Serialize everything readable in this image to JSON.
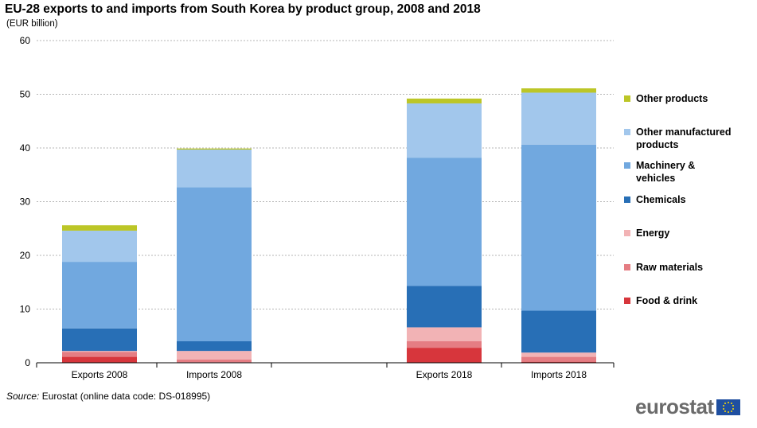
{
  "chart_data": {
    "type": "bar",
    "stacked": true,
    "title": "EU-28 exports to and imports from South Korea by product group, 2008 and 2018",
    "unit": "(EUR billion)",
    "categories": [
      "Exports 2008",
      "Imports 2008",
      "Exports 2018",
      "Imports 2018"
    ],
    "ylim": [
      0,
      60
    ],
    "yticks": [
      "0",
      "10",
      "20",
      "30",
      "40",
      "50",
      "60"
    ],
    "grid": true,
    "legend_position": "right",
    "series": [
      {
        "name": "Food & drink",
        "color": "#d7363c",
        "values": [
          1.1,
          0.1,
          2.8,
          0.2
        ]
      },
      {
        "name": "Raw materials",
        "color": "#e57d83",
        "values": [
          0.9,
          0.5,
          1.2,
          0.9
        ]
      },
      {
        "name": "Energy",
        "color": "#f2b3b5",
        "values": [
          0.2,
          1.6,
          2.6,
          0.8
        ]
      },
      {
        "name": "Chemicals",
        "color": "#286fb6",
        "values": [
          4.2,
          1.8,
          7.7,
          7.8
        ]
      },
      {
        "name": "Machinery & vehicles",
        "color": "#71a8df",
        "values": [
          12.4,
          28.7,
          23.9,
          30.9
        ]
      },
      {
        "name": "Other manufactured products",
        "color": "#a2c7ec",
        "values": [
          5.8,
          7.0,
          10.1,
          9.7
        ]
      },
      {
        "name": "Other products",
        "color": "#bcc627",
        "values": [
          1.0,
          0.2,
          0.9,
          0.8
        ]
      }
    ],
    "legend_lines": [
      [
        "Other products"
      ],
      [
        "Other manufactured",
        "products"
      ],
      [
        "Machinery &",
        "vehicles"
      ],
      [
        "Chemicals"
      ],
      [
        "Energy"
      ],
      [
        "Raw materials"
      ],
      [
        "Food & drink"
      ]
    ]
  },
  "source": {
    "label": "Source:",
    "text": "Eurostat (online data code: DS-018995)"
  },
  "logo": {
    "text": "eurostat",
    "flag_icon": "eu-flag-icon"
  }
}
